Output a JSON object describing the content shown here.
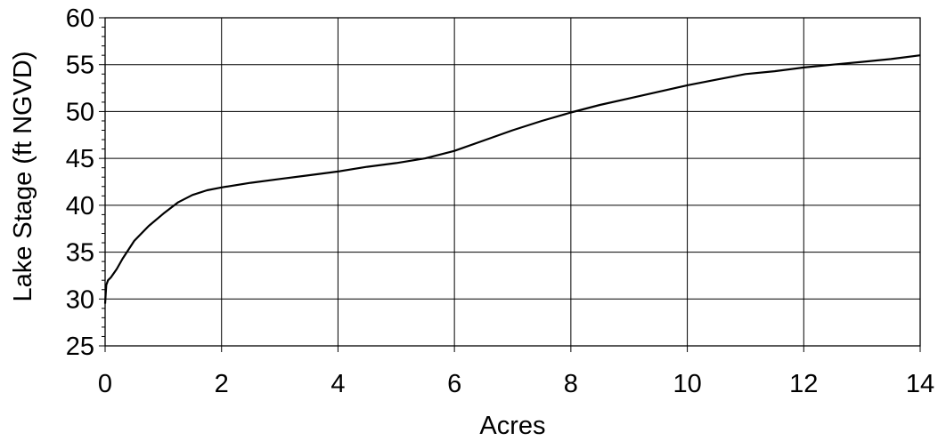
{
  "chart_data": {
    "type": "line",
    "title": "",
    "xlabel": "Acres",
    "ylabel": "Lake Stage (ft NGVD)",
    "xlim": [
      0,
      14
    ],
    "ylim": [
      25,
      60
    ],
    "xticks": [
      0,
      2,
      4,
      6,
      8,
      10,
      12,
      14
    ],
    "yticks": [
      25,
      30,
      35,
      40,
      45,
      50,
      55,
      60
    ],
    "grid": true,
    "legend": "none",
    "line_color": "#000000",
    "series": [
      {
        "x": [
          0.0,
          0.02,
          0.05,
          0.1,
          0.2,
          0.3,
          0.5,
          0.75,
          1.0,
          1.25,
          1.5,
          1.75,
          2.0,
          2.5,
          3.0,
          3.5,
          4.0,
          4.5,
          5.0,
          5.5,
          6.0,
          6.5,
          7.0,
          7.5,
          8.0,
          8.5,
          9.0,
          9.5,
          10.0,
          10.5,
          11.0,
          11.5,
          12.0,
          12.5,
          13.0,
          13.5,
          14.0
        ],
        "y": [
          29.5,
          31.5,
          32.0,
          32.3,
          33.2,
          34.3,
          36.2,
          37.8,
          39.1,
          40.3,
          41.1,
          41.6,
          41.9,
          42.4,
          42.8,
          43.2,
          43.6,
          44.1,
          44.5,
          45.0,
          45.8,
          46.9,
          48.0,
          49.0,
          49.9,
          50.7,
          51.4,
          52.1,
          52.8,
          53.4,
          54.0,
          54.3,
          54.7,
          55.0,
          55.3,
          55.6,
          56.0
        ]
      }
    ]
  }
}
